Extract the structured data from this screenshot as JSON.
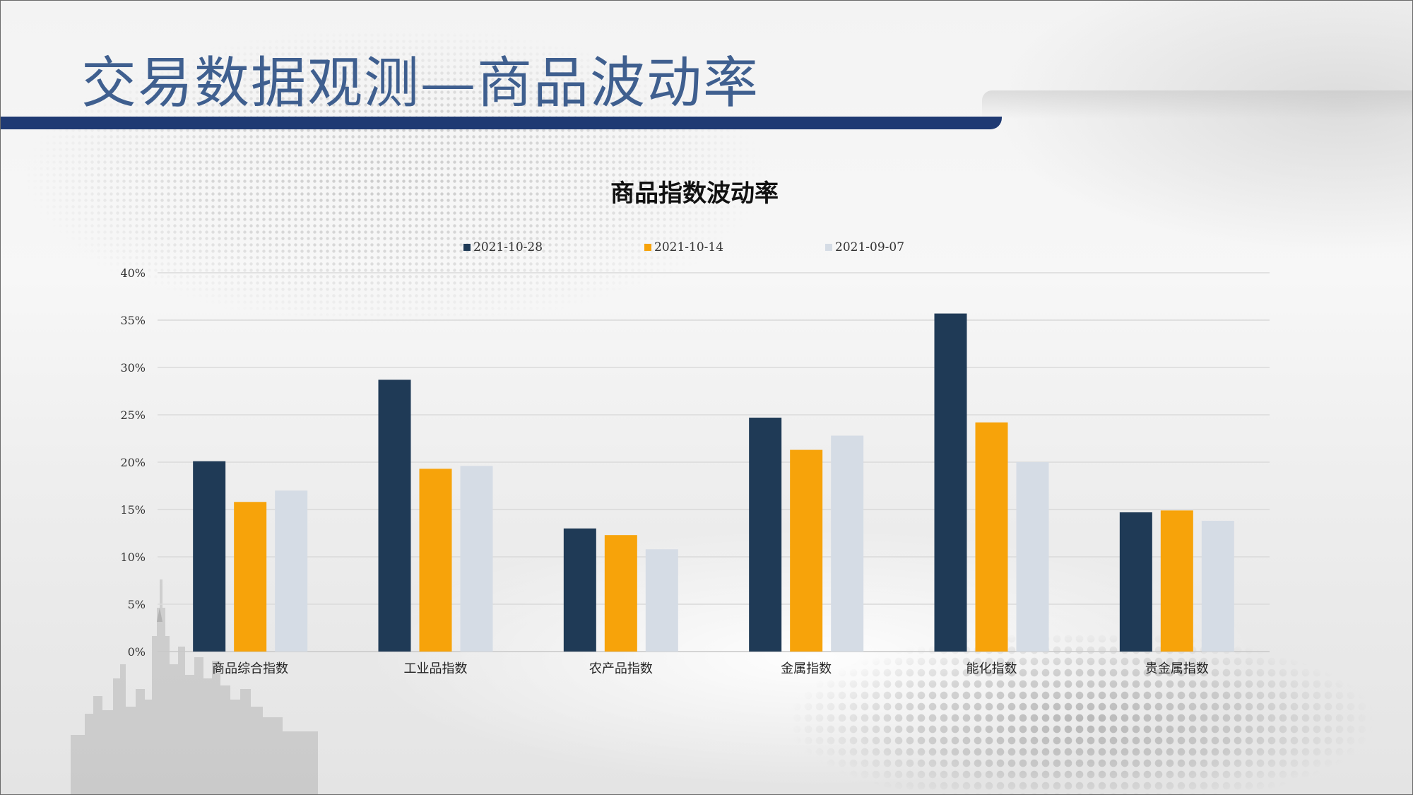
{
  "slide": {
    "title": "交易数据观测—商品波动率"
  },
  "colors": {
    "title": "#3f5f8f",
    "title_bar": "#1f3a73",
    "series": [
      "#1f3a56",
      "#f7a30a",
      "#d5dce5"
    ]
  },
  "chart_data": {
    "type": "bar",
    "title": "商品指数波动率",
    "categories": [
      "商品综合指数",
      "工业品指数",
      "农产品指数",
      "金属指数",
      "能化指数",
      "贵金属指数"
    ],
    "series": [
      {
        "name": "2021-10-28",
        "color": "#1f3a56",
        "values": [
          20.1,
          28.7,
          13.0,
          24.7,
          35.7,
          14.7
        ]
      },
      {
        "name": "2021-10-14",
        "color": "#f7a30a",
        "values": [
          15.8,
          19.3,
          12.3,
          21.3,
          24.2,
          14.9
        ]
      },
      {
        "name": "2021-09-07",
        "color": "#d5dce5",
        "values": [
          17.0,
          19.6,
          10.8,
          22.8,
          20.0,
          13.8
        ]
      }
    ],
    "y_ticks": [
      "0%",
      "5%",
      "10%",
      "15%",
      "20%",
      "25%",
      "30%",
      "35%",
      "40%"
    ],
    "ylim": [
      0,
      40
    ],
    "grid": true,
    "legend_position": "top"
  }
}
